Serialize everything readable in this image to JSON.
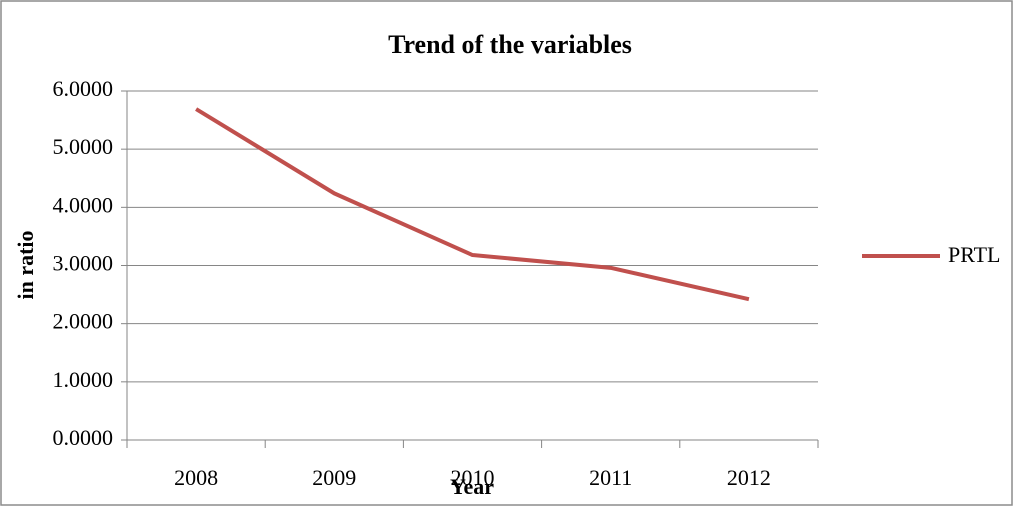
{
  "chart_data": {
    "type": "line",
    "title": "Trend of the variables",
    "x_label": "Year",
    "y_label": "in ratio",
    "categories": [
      "2008",
      "2009",
      "2010",
      "2011",
      "2012"
    ],
    "series": [
      {
        "name": "PRTL",
        "color": "#c0504d",
        "values": [
          5.69,
          4.24,
          3.18,
          2.96,
          2.42
        ]
      }
    ],
    "ylim": [
      0,
      6
    ],
    "yticks": [
      {
        "value": 0,
        "label": "0.0000"
      },
      {
        "value": 1,
        "label": "1.0000"
      },
      {
        "value": 2,
        "label": "2.0000"
      },
      {
        "value": 3,
        "label": "3.0000"
      },
      {
        "value": 4,
        "label": "4.0000"
      },
      {
        "value": 5,
        "label": "5.0000"
      },
      {
        "value": 6,
        "label": "6.0000"
      }
    ],
    "grid": true,
    "legend": "right"
  }
}
